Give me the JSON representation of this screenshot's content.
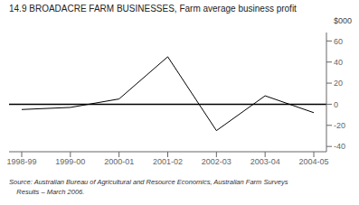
{
  "chart_data": {
    "type": "line",
    "title": "14.9  BROADACRE FARM BUSINESSES, Farm average business profit",
    "ylabel": "$000",
    "categories": [
      "1998-99",
      "1999-00",
      "2000-01",
      "2001-02",
      "2002-03",
      "2003-04",
      "2004-05"
    ],
    "values": [
      -5,
      -3,
      5,
      45,
      -25,
      8,
      -8
    ],
    "color": "#000000",
    "ylim": [
      -45,
      68
    ],
    "yticks": [
      -40,
      -20,
      0,
      20,
      40,
      60
    ],
    "grid": false,
    "annotations": [
      "Source: Australian Bureau of Agricultural and Resource Economics, Australian Farm Surveys",
      "    Results – March 2006."
    ]
  }
}
